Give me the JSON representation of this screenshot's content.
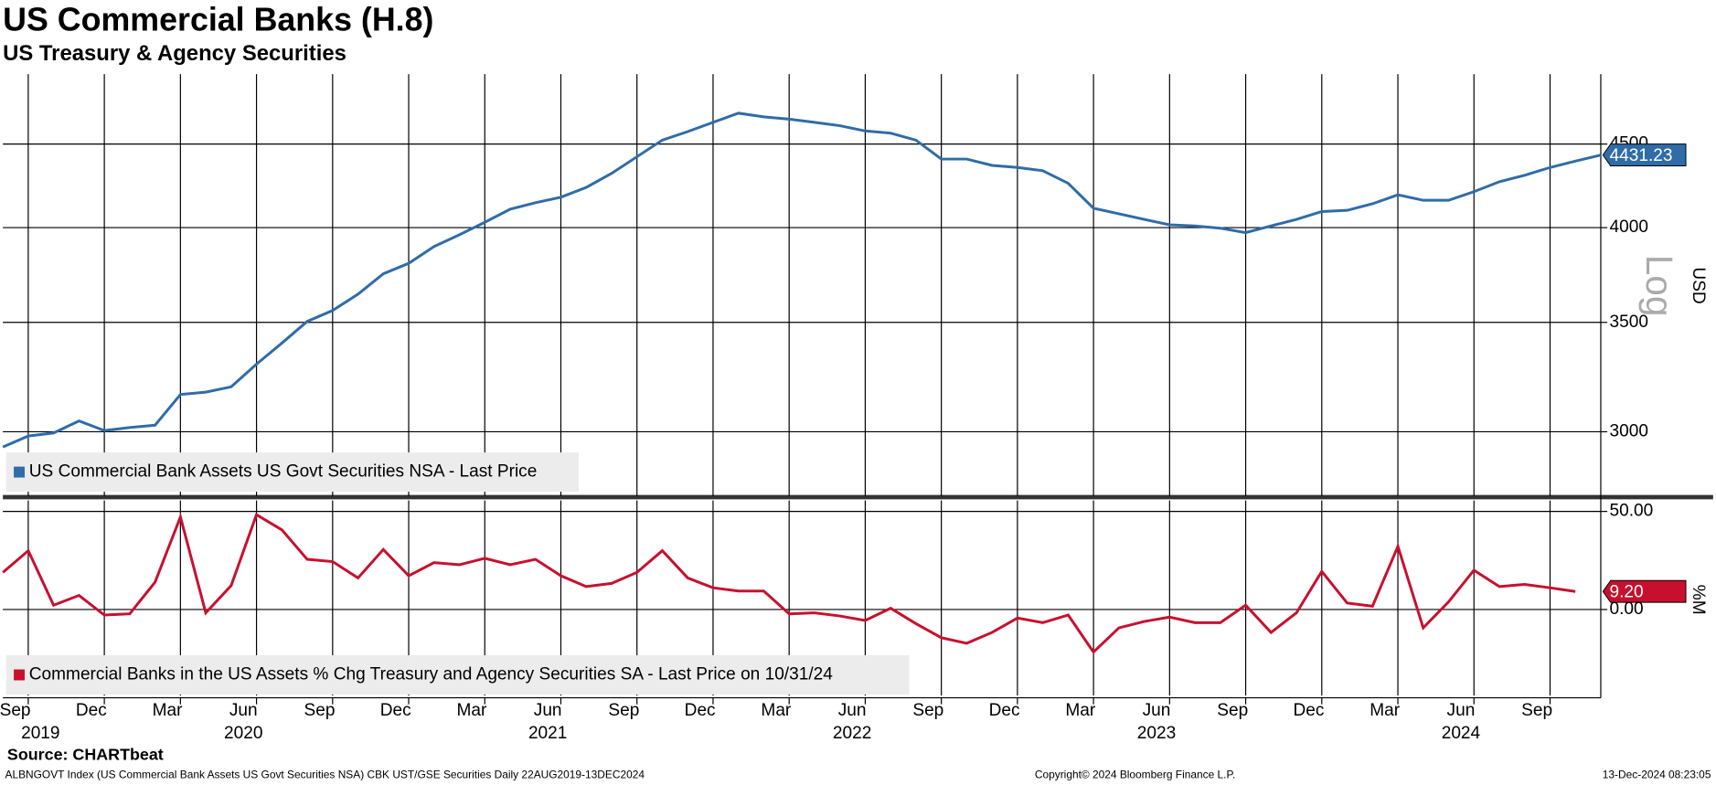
{
  "header": {
    "title": "US Commercial Banks (H.8)",
    "subtitle": "US Treasury & Agency Securities"
  },
  "chart_data": [
    {
      "type": "line",
      "log_scale": true,
      "grid": true,
      "y_label": "USD",
      "scale_label": "Log",
      "xlim": [
        "2019-08",
        "2024-11"
      ],
      "x": [
        "2019-08",
        "2019-09",
        "2019-10",
        "2019-11",
        "2019-12",
        "2020-01",
        "2020-02",
        "2020-03",
        "2020-04",
        "2020-05",
        "2020-06",
        "2020-07",
        "2020-08",
        "2020-09",
        "2020-10",
        "2020-11",
        "2020-12",
        "2021-01",
        "2021-02",
        "2021-03",
        "2021-04",
        "2021-05",
        "2021-06",
        "2021-07",
        "2021-08",
        "2021-09",
        "2021-10",
        "2021-11",
        "2021-12",
        "2022-01",
        "2022-02",
        "2022-03",
        "2022-04",
        "2022-05",
        "2022-06",
        "2022-07",
        "2022-08",
        "2022-09",
        "2022-10",
        "2022-11",
        "2022-12",
        "2023-01",
        "2023-02",
        "2023-03",
        "2023-04",
        "2023-05",
        "2023-06",
        "2023-07",
        "2023-08",
        "2023-09",
        "2023-10",
        "2023-11",
        "2023-12",
        "2024-01",
        "2024-02",
        "2024-03",
        "2024-04",
        "2024-05",
        "2024-06",
        "2024-07",
        "2024-08",
        "2024-09",
        "2024-10",
        "2024-11"
      ],
      "series": [
        {
          "name": "US Commercial Bank Assets US Govt Securities NSA - Last Price",
          "color": "#2f6ca8",
          "values": [
            2936,
            2982,
            2995,
            3046,
            3005,
            3018,
            3028,
            3162,
            3172,
            3196,
            3300,
            3399,
            3505,
            3559,
            3642,
            3748,
            3804,
            3895,
            3960,
            4030,
            4105,
            4143,
            4175,
            4233,
            4318,
            4420,
            4525,
            4580,
            4640,
            4700,
            4676,
            4661,
            4640,
            4618,
            4584,
            4570,
            4525,
            4406,
            4406,
            4367,
            4354,
            4334,
            4258,
            4111,
            4079,
            4047,
            4016,
            4010,
            3997,
            3972,
            4010,
            4047,
            4092,
            4099,
            4137,
            4189,
            4157,
            4157,
            4208,
            4267,
            4306,
            4354,
            4393,
            4431.23
          ]
        }
      ],
      "ylim": [
        2740,
        4966
      ],
      "yticks": [
        3000,
        3500,
        4000,
        4500
      ]
    },
    {
      "type": "line",
      "grid": true,
      "y_label": "%M",
      "xlim": [
        "2019-08",
        "2024-11"
      ],
      "x": [
        "2019-08",
        "2019-09",
        "2019-10",
        "2019-11",
        "2019-12",
        "2020-01",
        "2020-02",
        "2020-03",
        "2020-04",
        "2020-05",
        "2020-06",
        "2020-07",
        "2020-08",
        "2020-09",
        "2020-10",
        "2020-11",
        "2020-12",
        "2021-01",
        "2021-02",
        "2021-03",
        "2021-04",
        "2021-05",
        "2021-06",
        "2021-07",
        "2021-08",
        "2021-09",
        "2021-10",
        "2021-11",
        "2021-12",
        "2022-01",
        "2022-02",
        "2022-03",
        "2022-04",
        "2022-05",
        "2022-06",
        "2022-07",
        "2022-08",
        "2022-09",
        "2022-10",
        "2022-11",
        "2022-12",
        "2023-01",
        "2023-02",
        "2023-03",
        "2023-04",
        "2023-05",
        "2023-06",
        "2023-07",
        "2023-08",
        "2023-09",
        "2023-10",
        "2023-11",
        "2023-12",
        "2024-01",
        "2024-02",
        "2024-03",
        "2024-04",
        "2024-05",
        "2024-06",
        "2024-07",
        "2024-08",
        "2024-09",
        "2024-10"
      ],
      "series": [
        {
          "name": "Commercial Banks in the US Assets % Chg Treasury and Agency Securities SA - Last Price on 10/31/24",
          "color": "#c8102e",
          "values": [
            18.9,
            30,
            2.2,
            7.2,
            -2.8,
            -2.2,
            13.9,
            47.2,
            -1.7,
            12.2,
            48.3,
            40.6,
            25.6,
            24.4,
            16.1,
            30.6,
            17.2,
            23.9,
            22.8,
            26.1,
            22.8,
            25.6,
            17.2,
            11.7,
            13.3,
            18.9,
            30,
            16.1,
            11.1,
            9.4,
            9.4,
            -2.2,
            -1.7,
            -3.3,
            -5.6,
            0.6,
            -7.2,
            -14.4,
            -17.2,
            -11.7,
            -4.4,
            -6.7,
            -2.8,
            -21.7,
            -9.4,
            -6.1,
            -3.9,
            -6.7,
            -6.7,
            2.2,
            -11.7,
            -1.7,
            19.4,
            3.3,
            1.7,
            32.2,
            -9.4,
            3.9,
            20,
            11.7,
            12.8,
            11.1,
            9.2
          ],
          "value_labels": [
            null,
            null,
            null,
            null,
            null,
            null,
            null,
            null,
            null,
            null,
            null,
            null,
            null,
            null,
            null,
            null,
            null,
            null,
            null,
            null,
            null,
            null,
            null,
            null,
            null,
            null,
            null,
            null,
            null,
            null,
            null,
            null,
            null,
            null,
            null,
            null,
            null,
            null,
            null,
            null,
            null,
            null,
            null,
            null,
            null,
            null,
            null,
            null,
            null,
            null,
            null,
            null,
            null,
            null,
            null,
            null,
            null,
            null,
            null,
            null,
            null,
            null,
            "9.20"
          ]
        }
      ],
      "ylim": [
        -43.9,
        55.6
      ],
      "yticks": [
        {
          "value": 0,
          "label": "0.00"
        },
        {
          "value": 50,
          "label": "50.00"
        }
      ],
      "xticks": [
        {
          "value": "2019-09",
          "label": "Sep"
        },
        {
          "value": "2019-12",
          "label": "Dec"
        },
        {
          "value": "2020-03",
          "label": "Mar"
        },
        {
          "value": "2020-06",
          "label": "Jun"
        },
        {
          "value": "2020-09",
          "label": "Sep"
        },
        {
          "value": "2020-12",
          "label": "Dec"
        },
        {
          "value": "2021-03",
          "label": "Mar"
        },
        {
          "value": "2021-06",
          "label": "Jun"
        },
        {
          "value": "2021-09",
          "label": "Sep"
        },
        {
          "value": "2021-12",
          "label": "Dec"
        },
        {
          "value": "2022-03",
          "label": "Mar"
        },
        {
          "value": "2022-06",
          "label": "Jun"
        },
        {
          "value": "2022-09",
          "label": "Sep"
        },
        {
          "value": "2022-12",
          "label": "Dec"
        },
        {
          "value": "2023-03",
          "label": "Mar"
        },
        {
          "value": "2023-06",
          "label": "Jun"
        },
        {
          "value": "2023-09",
          "label": "Sep"
        },
        {
          "value": "2023-12",
          "label": "Dec"
        },
        {
          "value": "2024-03",
          "label": "Mar"
        },
        {
          "value": "2024-06",
          "label": "Jun"
        },
        {
          "value": "2024-09",
          "label": "Sep"
        }
      ],
      "xtick_years": [
        {
          "value": "2019-10",
          "label": "2019"
        },
        {
          "value": "2020-06",
          "label": "2020"
        },
        {
          "value": "2021-06",
          "label": "2021"
        },
        {
          "value": "2022-06",
          "label": "2022"
        },
        {
          "value": "2023-06",
          "label": "2023"
        },
        {
          "value": "2024-06",
          "label": "2024"
        }
      ]
    }
  ],
  "footer": {
    "source": "Source: CHARTbeat",
    "ticker": "ALBNGOVT Index (US Commercial Bank Assets US Govt Securities NSA) CBK UST/GSE Securities  Daily 22AUG2019-13DEC2024",
    "copyright": "Copyright© 2024 Bloomberg Finance L.P.",
    "timestamp": "13-Dec-2024 08:23:05"
  }
}
